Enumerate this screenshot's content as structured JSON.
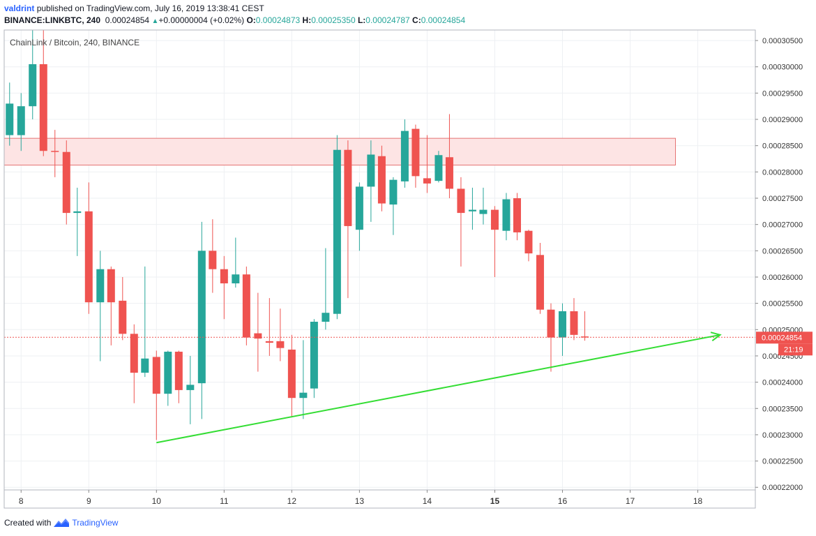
{
  "header": {
    "user": "valdrint",
    "published_text": "published on TradingView.com, July 16, 2019 13:38:41 CEST",
    "symbol": "BINANCE:LINKBTC, 240",
    "last": "0.00024854",
    "change_icon": "triangle-up-icon",
    "change": "+0.00000004 (+0.02%)",
    "o_label": "O:",
    "o_value": "0.00024873",
    "h_label": "H:",
    "h_value": "0.00025350",
    "l_label": "L:",
    "l_value": "0.00024787",
    "c_label": "C:",
    "c_value": "0.00024854"
  },
  "footer": {
    "created_with": "Created with",
    "brand_icon": "tradingview-logo-icon",
    "brand": "TradingView"
  },
  "colors": {
    "up": "#26a69a",
    "down": "#ef5350",
    "zone_fill": "#fde4e4",
    "zone_stroke": "#e57373",
    "trendline": "#33dd33",
    "price_line": "#ef5350",
    "grid": "#eef0f3",
    "axis_text": "#333333"
  },
  "chart_data": {
    "type": "candlestick",
    "title": "ChainLink / Bitcoin, 240, BINANCE",
    "x_unit": "day",
    "x_ticks": [
      "8",
      "9",
      "10",
      "11",
      "12",
      "13",
      "14",
      "15",
      "16",
      "17",
      "18"
    ],
    "x_tick_values": [
      8,
      9,
      10,
      11,
      12,
      13,
      14,
      15,
      16,
      17,
      18
    ],
    "bold_x_tick": "15",
    "xlim": [
      7.75,
      18.85
    ],
    "y_ticks": [
      "0.00030500",
      "0.00030000",
      "0.00029500",
      "0.00029000",
      "0.00028500",
      "0.00028000",
      "0.00027500",
      "0.00027000",
      "0.00026500",
      "0.00026000",
      "0.00025500",
      "0.00025000",
      "0.00024500",
      "0.00024000",
      "0.00023500",
      "0.00023000",
      "0.00022500",
      "0.00022000"
    ],
    "y_tick_values": [
      0.000305,
      0.0003,
      0.000295,
      0.00029,
      0.000285,
      0.00028,
      0.000275,
      0.00027,
      0.000265,
      0.00026,
      0.000255,
      0.00025,
      0.000245,
      0.00024,
      0.000235,
      0.00023,
      0.000225,
      0.00022
    ],
    "ylim": [
      0.0002195,
      0.000307
    ],
    "grid": true,
    "candles": [
      {
        "t": 7.83,
        "o": 0.000287,
        "h": 0.000297,
        "l": 0.000285,
        "c": 0.000293
      },
      {
        "t": 8.0,
        "o": 0.000287,
        "h": 0.000295,
        "l": 0.000284,
        "c": 0.0002925
      },
      {
        "t": 8.17,
        "o": 0.0002925,
        "h": 0.000307,
        "l": 0.00029,
        "c": 0.0003005
      },
      {
        "t": 8.33,
        "o": 0.0003005,
        "h": 0.000307,
        "l": 0.000283,
        "c": 0.000284
      },
      {
        "t": 8.5,
        "o": 0.000284,
        "h": 0.000288,
        "l": 0.000279,
        "c": 0.0002838
      },
      {
        "t": 8.67,
        "o": 0.0002838,
        "h": 0.000286,
        "l": 0.00027,
        "c": 0.0002722
      },
      {
        "t": 8.83,
        "o": 0.0002722,
        "h": 0.000277,
        "l": 0.000264,
        "c": 0.0002725
      },
      {
        "t": 9.0,
        "o": 0.0002725,
        "h": 0.000278,
        "l": 0.000253,
        "c": 0.0002552
      },
      {
        "t": 9.17,
        "o": 0.0002552,
        "h": 0.000265,
        "l": 0.000244,
        "c": 0.0002615
      },
      {
        "t": 9.33,
        "o": 0.0002615,
        "h": 0.000262,
        "l": 0.000247,
        "c": 0.0002552
      },
      {
        "t": 9.5,
        "o": 0.0002555,
        "h": 0.00026,
        "l": 0.000248,
        "c": 0.0002492
      },
      {
        "t": 9.67,
        "o": 0.0002492,
        "h": 0.000251,
        "l": 0.000236,
        "c": 0.0002418
      },
      {
        "t": 9.83,
        "o": 0.0002418,
        "h": 0.000262,
        "l": 0.000241,
        "c": 0.0002445
      },
      {
        "t": 10.0,
        "o": 0.0002448,
        "h": 0.000246,
        "l": 0.000229,
        "c": 0.0002378
      },
      {
        "t": 10.17,
        "o": 0.0002378,
        "h": 0.000246,
        "l": 0.0002355,
        "c": 0.0002458
      },
      {
        "t": 10.33,
        "o": 0.0002458,
        "h": 0.000246,
        "l": 0.000236,
        "c": 0.0002385
      },
      {
        "t": 10.5,
        "o": 0.0002385,
        "h": 0.000245,
        "l": 0.000232,
        "c": 0.0002395
      },
      {
        "t": 10.67,
        "o": 0.0002398,
        "h": 0.0002705,
        "l": 0.000233,
        "c": 0.000265
      },
      {
        "t": 10.83,
        "o": 0.000265,
        "h": 0.000271,
        "l": 0.000257,
        "c": 0.0002615
      },
      {
        "t": 11.0,
        "o": 0.0002615,
        "h": 0.000264,
        "l": 0.000252,
        "c": 0.0002588
      },
      {
        "t": 11.17,
        "o": 0.0002588,
        "h": 0.0002675,
        "l": 0.000258,
        "c": 0.0002605
      },
      {
        "t": 11.33,
        "o": 0.0002605,
        "h": 0.000262,
        "l": 0.000247,
        "c": 0.0002485
      },
      {
        "t": 11.5,
        "o": 0.0002493,
        "h": 0.000257,
        "l": 0.000242,
        "c": 0.0002483
      },
      {
        "t": 11.67,
        "o": 0.0002478,
        "h": 0.000256,
        "l": 0.000245,
        "c": 0.0002475
      },
      {
        "t": 11.83,
        "o": 0.0002478,
        "h": 0.000254,
        "l": 0.000244,
        "c": 0.0002465
      },
      {
        "t": 12.0,
        "o": 0.0002462,
        "h": 0.000249,
        "l": 0.0002335,
        "c": 0.000237
      },
      {
        "t": 12.17,
        "o": 0.000237,
        "h": 0.000248,
        "l": 0.000233,
        "c": 0.000238
      },
      {
        "t": 12.33,
        "o": 0.0002388,
        "h": 0.000252,
        "l": 0.000237,
        "c": 0.0002515
      },
      {
        "t": 12.5,
        "o": 0.0002515,
        "h": 0.0002655,
        "l": 0.00025,
        "c": 0.0002532
      },
      {
        "t": 12.67,
        "o": 0.000253,
        "h": 0.000287,
        "l": 0.000252,
        "c": 0.0002842
      },
      {
        "t": 12.83,
        "o": 0.0002842,
        "h": 0.000286,
        "l": 0.000256,
        "c": 0.0002697
      },
      {
        "t": 13.0,
        "o": 0.000269,
        "h": 0.000278,
        "l": 0.000265,
        "c": 0.0002772
      },
      {
        "t": 13.17,
        "o": 0.0002772,
        "h": 0.000286,
        "l": 0.0002705,
        "c": 0.0002833
      },
      {
        "t": 13.33,
        "o": 0.000283,
        "h": 0.000285,
        "l": 0.0002725,
        "c": 0.000274
      },
      {
        "t": 13.5,
        "o": 0.0002738,
        "h": 0.000279,
        "l": 0.000268,
        "c": 0.0002785
      },
      {
        "t": 13.67,
        "o": 0.0002782,
        "h": 0.00029,
        "l": 0.000277,
        "c": 0.0002878
      },
      {
        "t": 13.83,
        "o": 0.0002882,
        "h": 0.000289,
        "l": 0.000277,
        "c": 0.0002792
      },
      {
        "t": 14.0,
        "o": 0.0002788,
        "h": 0.000287,
        "l": 0.000276,
        "c": 0.0002778
      },
      {
        "t": 14.17,
        "o": 0.0002783,
        "h": 0.000284,
        "l": 0.000278,
        "c": 0.0002832
      },
      {
        "t": 14.33,
        "o": 0.0002828,
        "h": 0.000291,
        "l": 0.000275,
        "c": 0.0002768
      },
      {
        "t": 14.5,
        "o": 0.0002768,
        "h": 0.000279,
        "l": 0.000262,
        "c": 0.0002722
      },
      {
        "t": 14.67,
        "o": 0.0002725,
        "h": 0.000277,
        "l": 0.000269,
        "c": 0.0002728
      },
      {
        "t": 14.83,
        "o": 0.000272,
        "h": 0.000277,
        "l": 0.00027,
        "c": 0.0002728
      },
      {
        "t": 15.0,
        "o": 0.0002728,
        "h": 0.0002735,
        "l": 0.00026,
        "c": 0.000269
      },
      {
        "t": 15.17,
        "o": 0.0002688,
        "h": 0.000276,
        "l": 0.000267,
        "c": 0.0002748
      },
      {
        "t": 15.33,
        "o": 0.000275,
        "h": 0.000276,
        "l": 0.000267,
        "c": 0.0002685
      },
      {
        "t": 15.5,
        "o": 0.0002688,
        "h": 0.000269,
        "l": 0.000263,
        "c": 0.0002645
      },
      {
        "t": 15.67,
        "o": 0.0002642,
        "h": 0.0002665,
        "l": 0.000253,
        "c": 0.0002538
      },
      {
        "t": 15.83,
        "o": 0.0002538,
        "h": 0.000255,
        "l": 0.000242,
        "c": 0.0002485
      },
      {
        "t": 16.0,
        "o": 0.0002485,
        "h": 0.000255,
        "l": 0.000245,
        "c": 0.0002535
      },
      {
        "t": 16.17,
        "o": 0.0002535,
        "h": 0.000256,
        "l": 0.000248,
        "c": 0.000249
      },
      {
        "t": 16.33,
        "o": 0.0002487,
        "h": 0.0002535,
        "l": 0.0002479,
        "c": 0.0002485
      }
    ],
    "resistance_zone": {
      "x_from": 7.75,
      "x_to": 17.67,
      "y_low": 0.0002813,
      "y_high": 0.0002864
    },
    "trendline": {
      "x1": 10.0,
      "y1": 0.0002285,
      "x2": 18.33,
      "y2": 0.000249
    },
    "last_price": {
      "value": 0.00024854,
      "label": "0.00024854",
      "countdown": "21:19"
    }
  }
}
